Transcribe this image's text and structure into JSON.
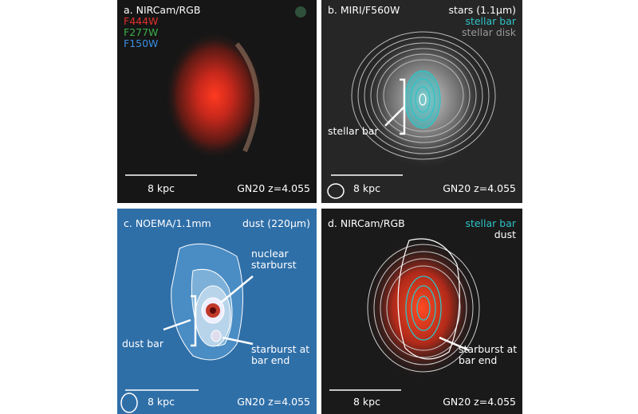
{
  "panels": [
    {
      "label": "a. NIRCam/RGB",
      "filters": [
        "F444W",
        "F277W",
        "F150W"
      ],
      "scale": "8 kpc",
      "target": "GN20 z=4.055"
    },
    {
      "label": "b. MIRI/F560W",
      "legend": [
        "stars (1.1μm)",
        "stellar bar",
        "stellar disk"
      ],
      "annotations": [
        "stellar bar"
      ],
      "scale": "8 kpc",
      "target": "GN20 z=4.055"
    },
    {
      "label": "c. NOEMA/1.1mm",
      "legend": [
        "dust (220μm)"
      ],
      "annotations": [
        "nuclear starburst",
        "dust bar",
        "starburst at bar end"
      ],
      "scale": "8 kpc",
      "target": "GN20 z=4.055"
    },
    {
      "label": "d. NIRCam/RGB",
      "legend": [
        "stellar bar",
        "dust"
      ],
      "annotations": [
        "starburst at bar end"
      ],
      "scale": "8 kpc",
      "target": "GN20 z=4.055"
    }
  ]
}
